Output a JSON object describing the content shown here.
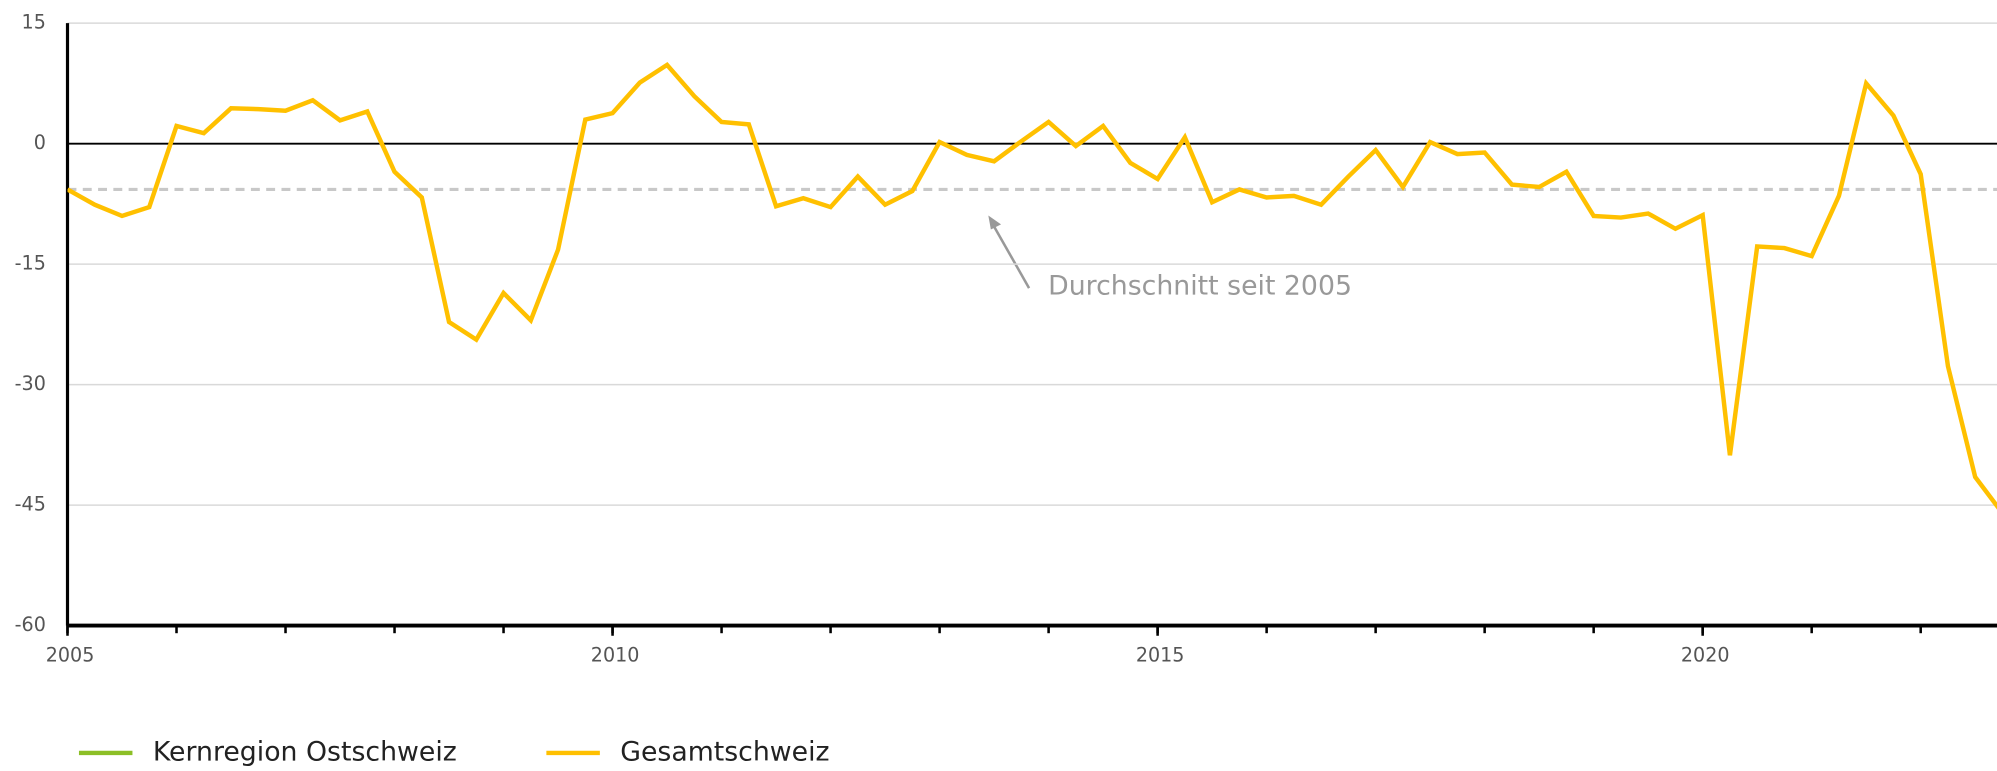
{
  "chart_data": {
    "type": "line",
    "x": [
      2005,
      2005.25,
      2005.5,
      2005.75,
      2006,
      2006.25,
      2006.5,
      2006.75,
      2007,
      2007.25,
      2007.5,
      2007.75,
      2008,
      2008.25,
      2008.5,
      2008.75,
      2009,
      2009.25,
      2009.5,
      2009.75,
      2010,
      2010.25,
      2010.5,
      2010.75,
      2011,
      2011.25,
      2011.5,
      2011.75,
      2012,
      2012.25,
      2012.5,
      2012.75,
      2013,
      2013.25,
      2013.5,
      2013.75,
      2014,
      2014.25,
      2014.5,
      2014.75,
      2015,
      2015.25,
      2015.5,
      2015.75,
      2016,
      2016.25,
      2016.5,
      2016.75,
      2017,
      2017.25,
      2017.5,
      2017.75,
      2018,
      2018.25,
      2018.5,
      2018.75,
      2019,
      2019.25,
      2019.5,
      2019.75,
      2020,
      2020.25,
      2020.5,
      2020.75,
      2021,
      2021.25,
      2021.5,
      2021.75,
      2022,
      2022.25,
      2022.5,
      2022.75
    ],
    "series": [
      {
        "name": "Kernregion Ostschweiz",
        "color": "#8cbf26",
        "values": [
          null,
          null,
          null,
          null,
          null,
          null,
          null,
          null,
          null,
          null,
          null,
          null,
          null,
          null,
          null,
          null,
          null,
          null,
          null,
          null,
          null,
          null,
          null,
          null,
          null,
          null,
          null,
          null,
          null,
          null,
          null,
          null,
          null,
          null,
          null,
          null,
          null,
          null,
          null,
          null,
          null,
          null,
          null,
          null,
          null,
          null,
          null,
          null,
          null,
          null,
          null,
          null,
          null,
          null,
          null,
          null,
          null,
          null,
          null,
          null,
          null,
          null,
          null,
          null,
          null,
          null,
          null,
          null,
          null,
          null,
          null,
          null
        ]
      },
      {
        "name": "Gesamtschweiz",
        "color": "#ffc000",
        "values": [
          -5.7,
          -7.6,
          -9.0,
          -7.9,
          2.2,
          1.3,
          4.4,
          4.3,
          4.1,
          5.4,
          2.9,
          4.0,
          -3.5,
          -6.7,
          -22.2,
          -24.4,
          -18.6,
          -22.0,
          -13.2,
          3.0,
          3.8,
          7.6,
          9.8,
          5.9,
          2.7,
          2.4,
          -7.8,
          -6.8,
          -7.9,
          -4.1,
          -7.6,
          -5.9,
          0.2,
          -1.4,
          -2.2,
          0.3,
          2.7,
          -0.3,
          2.2,
          -2.4,
          -4.4,
          0.8,
          -7.3,
          -5.7,
          -6.7,
          -6.5,
          -7.6,
          -4.1,
          -0.8,
          -5.4,
          0.2,
          -1.3,
          -1.1,
          -5.1,
          -5.4,
          -3.5,
          -9.0,
          -9.2,
          -8.7,
          -10.6,
          -8.9,
          -38.8,
          -12.8,
          -13.0,
          -14.0,
          -6.5,
          7.5,
          3.5,
          -3.8,
          -27.7,
          -41.5,
          -46.0
        ]
      }
    ],
    "average": -5.7,
    "annotation": "Durchschnitt seit 2005",
    "xlim": [
      2005,
      2022.7
    ],
    "xticks": [
      2005,
      2010,
      2015,
      2020
    ],
    "xminorticks": [
      2005,
      2006,
      2007,
      2008,
      2009,
      2010,
      2011,
      2012,
      2013,
      2014,
      2015,
      2016,
      2017,
      2018,
      2019,
      2020,
      2021,
      2022
    ],
    "ylim": [
      -60,
      15
    ],
    "yticks": [
      -60,
      -45,
      -30,
      -15,
      0,
      15
    ],
    "grid": true,
    "legend": "bottom"
  }
}
